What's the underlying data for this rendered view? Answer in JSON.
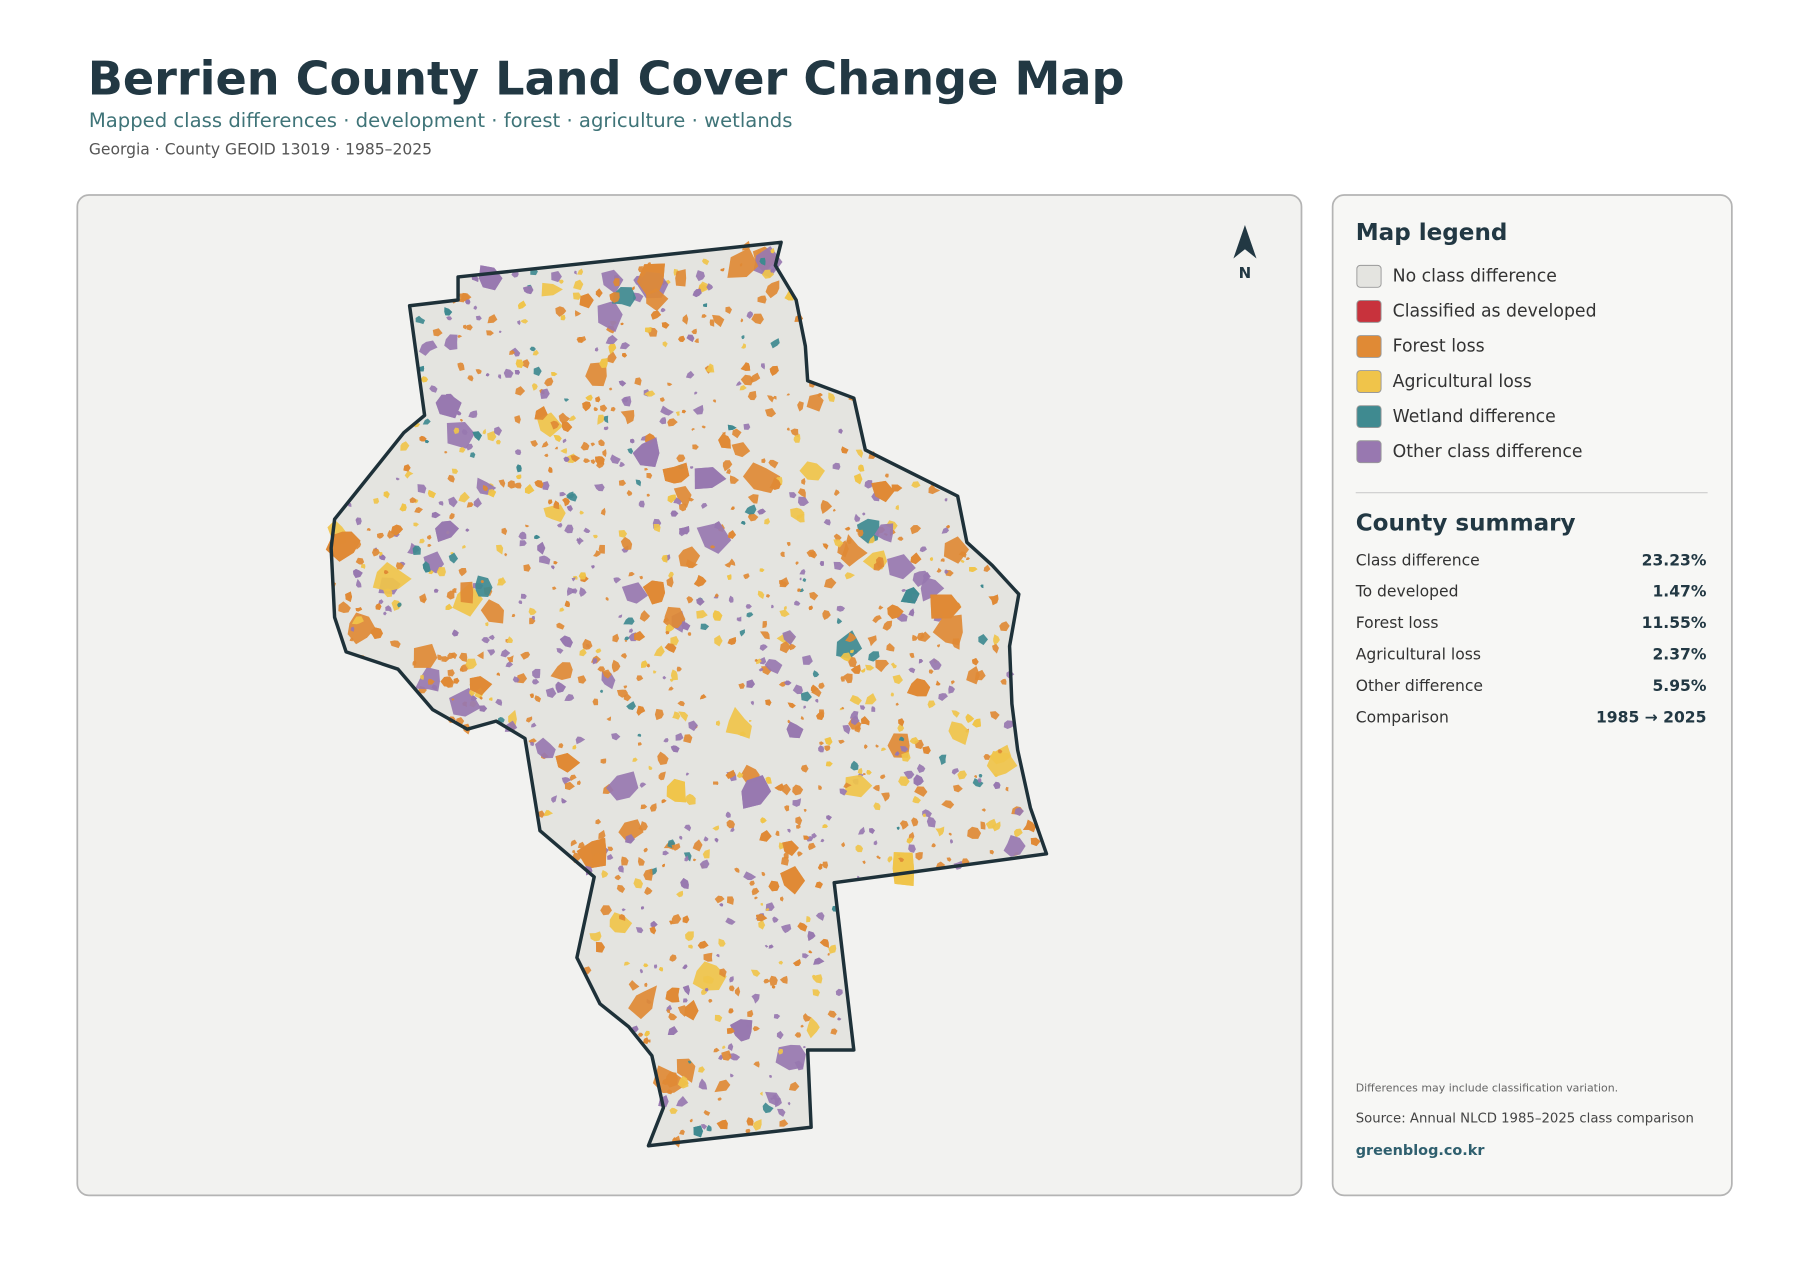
{
  "header": {
    "title": "Berrien County Land Cover Change Map",
    "subtitle": "Mapped class differences · development · forest · agriculture · wetlands",
    "meta": "Georgia · County GEOID 13019 · 1985–2025"
  },
  "map": {
    "north_label": "N"
  },
  "legend": {
    "title": "Map legend",
    "items": [
      {
        "label": "No class difference",
        "color": "#e4e4e0"
      },
      {
        "label": "Classified as developed",
        "color": "#c8323c"
      },
      {
        "label": "Forest loss",
        "color": "#e08a35"
      },
      {
        "label": "Agricultural loss",
        "color": "#f0c44a"
      },
      {
        "label": "Wetland difference",
        "color": "#3f8a90"
      },
      {
        "label": "Other class difference",
        "color": "#9878b0"
      }
    ]
  },
  "summary": {
    "title": "County summary",
    "rows": [
      [
        "Class difference",
        "23.23%"
      ],
      [
        "To developed",
        "1.47%"
      ],
      [
        "Forest loss",
        "11.55%"
      ],
      [
        "Agricultural loss",
        "2.37%"
      ],
      [
        "Other difference",
        "5.95%"
      ],
      [
        "Comparison",
        "1985 → 2025"
      ]
    ]
  },
  "footer": {
    "note": "Differences may include classification variation.",
    "source": "Source: Annual NLCD 1985–2025 class comparison",
    "site": "greenblog.co.kr"
  }
}
